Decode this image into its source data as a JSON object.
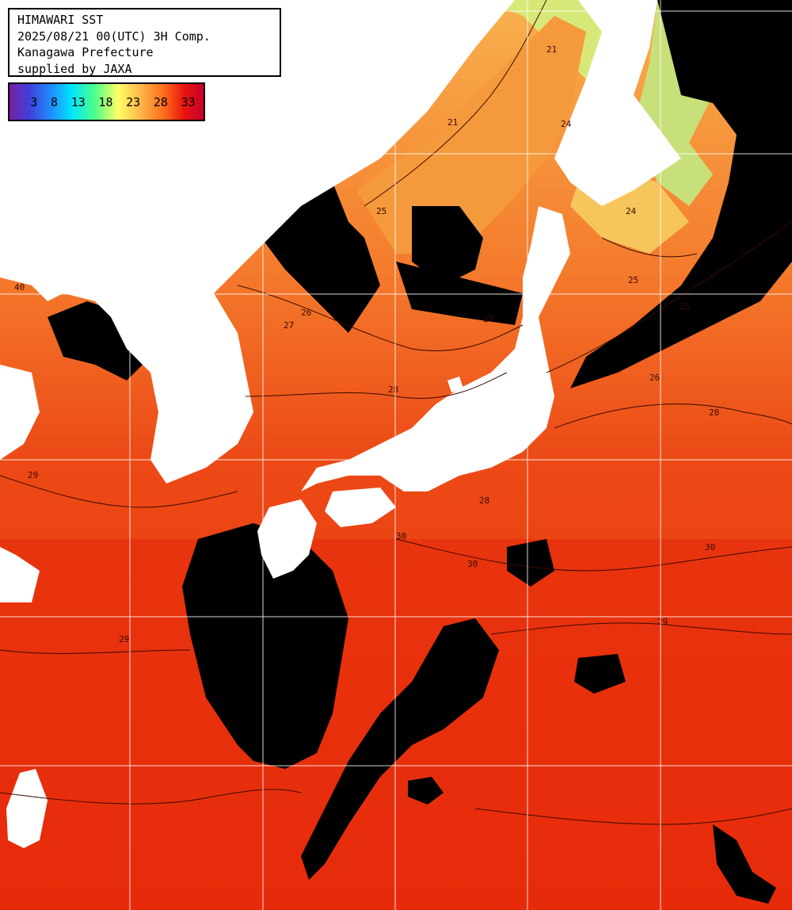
{
  "header": {
    "title": "HIMAWARI SST",
    "datetime": "2025/08/21 00(UTC) 3H Comp.",
    "region": "Kanagawa Prefecture",
    "credit": "supplied by JAXA"
  },
  "legend": {
    "ticks": [
      "3",
      "8",
      "13",
      "18",
      "23",
      "28",
      "33"
    ]
  },
  "contour_labels": [
    "21",
    "21",
    "24",
    "24",
    "25",
    "25",
    "25",
    "26",
    "26",
    "27",
    "27",
    "28",
    "28",
    "28",
    "29",
    "29",
    "29",
    "30",
    "30",
    "30",
    "40"
  ],
  "colors": {
    "land": "#ffffff",
    "cloud": "#000000",
    "sea_warm": "#e8340f",
    "sea_mid": "#f47a2c",
    "sea_cool": "#f8b14e",
    "sea_cold": "#d8e878",
    "grid": "#ffffff",
    "contour": "#3a0a00"
  }
}
